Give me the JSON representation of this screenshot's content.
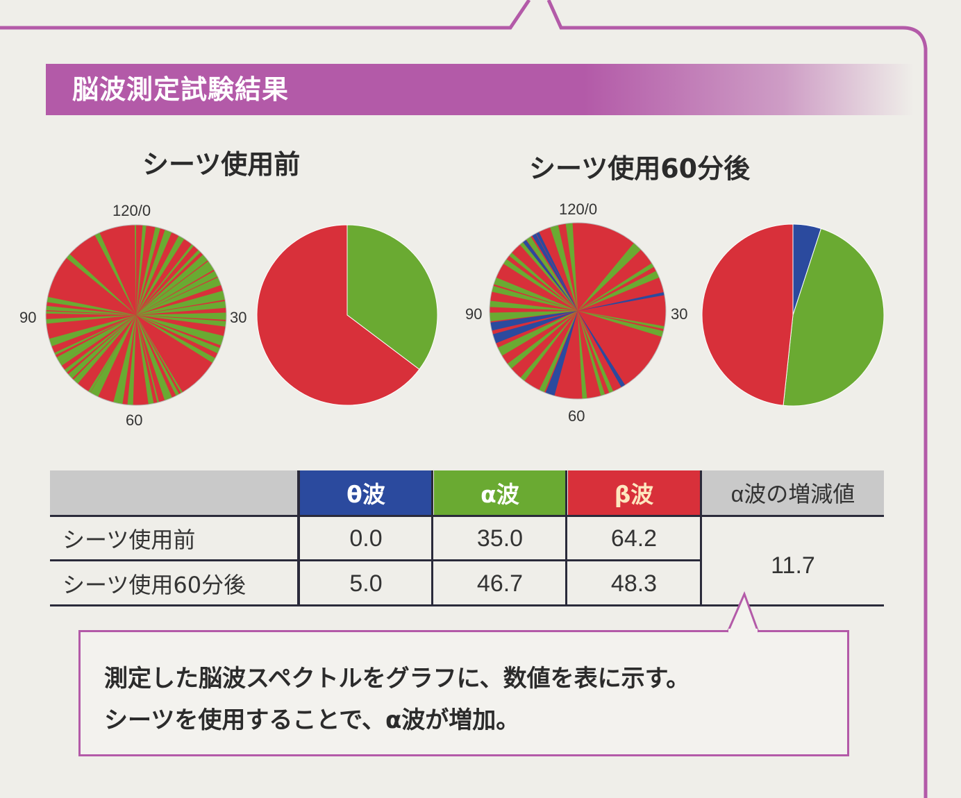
{
  "section_title": "脳波測定試験結果",
  "colors": {
    "theta": "#2b4a9e",
    "alpha": "#6aaa32",
    "beta": "#d8303a",
    "accent": "#b35aa8"
  },
  "chart_data": [
    {
      "type": "polar",
      "title": "シーツ使用前",
      "ticks": [
        "120/0",
        "30",
        "60",
        "90"
      ],
      "series_colors": [
        "#2b4a9e",
        "#6aaa32",
        "#d8303a"
      ]
    },
    {
      "type": "pie",
      "title": "シーツ使用前",
      "categories": [
        "θ波",
        "α波",
        "β波"
      ],
      "values": [
        0.0,
        35.0,
        64.2
      ]
    },
    {
      "type": "polar",
      "title": "シーツ使用60分後",
      "ticks": [
        "120/0",
        "30",
        "60",
        "90"
      ],
      "series_colors": [
        "#2b4a9e",
        "#6aaa32",
        "#d8303a"
      ]
    },
    {
      "type": "pie",
      "title": "シーツ使用60分後",
      "categories": [
        "θ波",
        "α波",
        "β波"
      ],
      "values": [
        5.0,
        46.7,
        48.3
      ]
    }
  ],
  "table": {
    "headers": [
      "",
      "θ波",
      "α波",
      "β波",
      "α波の増減値"
    ],
    "rows": [
      {
        "label": "シーツ使用前",
        "theta": "0.0",
        "alpha": "35.0",
        "beta": "64.2"
      },
      {
        "label": "シーツ使用60分後",
        "theta": "5.0",
        "alpha": "46.7",
        "beta": "48.3"
      }
    ],
    "alpha_change": "11.7"
  },
  "callout": {
    "line1": "測定した脳波スペクトルをグラフに、数値を表に示す。",
    "line2": "シーツを使用することで、α波が増加。"
  }
}
